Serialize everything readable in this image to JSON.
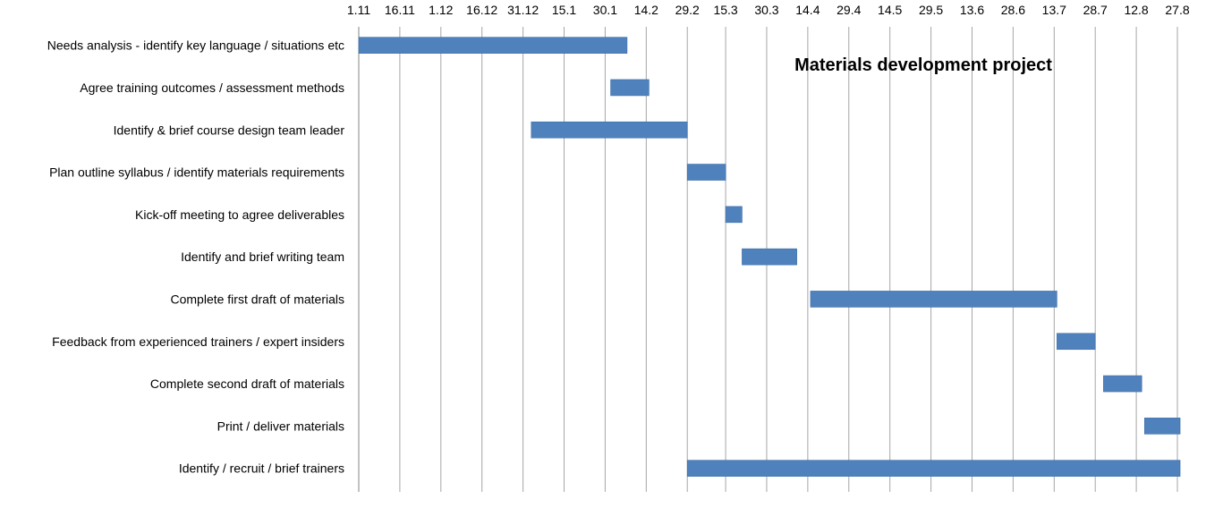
{
  "chart_data": {
    "type": "gantt",
    "title": "Materials development project",
    "x_axis": {
      "position": "top",
      "tick_labels": [
        "1.11",
        "16.11",
        "1.12",
        "16.12",
        "31.12",
        "15.1",
        "30.1",
        "14.2",
        "29.2",
        "15.3",
        "30.3",
        "14.4",
        "29.4",
        "14.5",
        "29.5",
        "13.6",
        "28.6",
        "13.7",
        "28.7",
        "12.8",
        "27.8"
      ],
      "range": [
        "1.11",
        "27.8"
      ],
      "grid": true
    },
    "bar_color": "#4f81bd",
    "tasks": [
      {
        "label": "Needs analysis - identify key language / situations etc",
        "start": "1.11",
        "end": "7.2"
      },
      {
        "label": "Agree training outcomes / assessment methods",
        "start": "1.2",
        "end": "15.2"
      },
      {
        "label": "Identify & brief course design team leader",
        "start": "3.1",
        "end": "1.3"
      },
      {
        "label": "Plan outline syllabus / identify materials requirements",
        "start": "1.3",
        "end": "15.3"
      },
      {
        "label": "Kick-off meeting to agree deliverables",
        "start": "15.3",
        "end": "21.3"
      },
      {
        "label": "Identify and brief writing team",
        "start": "21.3",
        "end": "10.4"
      },
      {
        "label": "Complete first draft of materials",
        "start": "15.4",
        "end": "14.7"
      },
      {
        "label": "Feedback from experienced trainers / expert insiders",
        "start": "14.7",
        "end": "28.7"
      },
      {
        "label": "Complete second draft of materials",
        "start": "31.7",
        "end": "14.8"
      },
      {
        "label": "Print / deliver materials",
        "start": "15.8",
        "end": "28.8"
      },
      {
        "label": "Identify / recruit / brief trainers",
        "start": "1.3",
        "end": "28.8"
      }
    ]
  }
}
